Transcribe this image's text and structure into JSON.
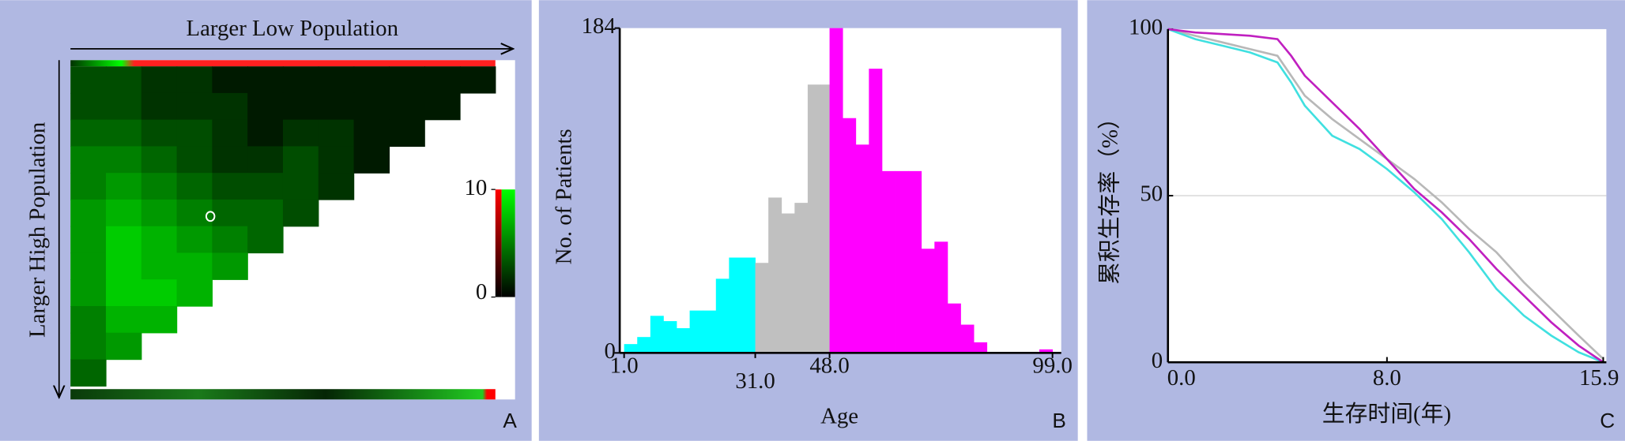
{
  "chart_data": [
    {
      "type": "heatmap",
      "title": "Larger Low Population",
      "ylabel": "Larger High Population",
      "panel_label": "A",
      "clim": [
        0,
        10
      ],
      "colorbar_ticks": [
        0,
        10
      ],
      "matrix": [
        [
          3,
          3,
          2,
          2,
          1,
          1,
          1,
          1,
          1,
          1,
          1,
          1
        ],
        [
          3,
          3,
          2,
          2,
          2,
          1,
          1,
          1,
          1,
          1,
          1
        ],
        [
          4,
          4,
          3,
          3,
          2,
          1,
          2,
          2,
          1,
          1
        ],
        [
          5,
          5,
          4,
          3,
          2,
          2,
          3,
          2,
          1
        ],
        [
          5,
          6,
          5,
          4,
          3,
          3,
          3,
          2
        ],
        [
          6,
          7,
          6,
          5,
          4,
          4,
          3
        ],
        [
          6,
          8,
          7,
          6,
          5,
          4
        ],
        [
          6,
          8,
          7,
          7,
          6
        ],
        [
          6,
          8,
          8,
          7
        ],
        [
          5,
          7,
          7
        ],
        [
          5,
          6
        ],
        [
          4
        ]
      ]
    },
    {
      "type": "histogram",
      "xlabel": "Age",
      "ylabel": "No. of Patients",
      "panel_label": "B",
      "xlim": [
        0,
        101
      ],
      "ylim": [
        0,
        184
      ],
      "xticks": [
        {
          "value": 1,
          "label": "1.0"
        },
        {
          "value": 31,
          "label": "31.0"
        },
        {
          "value": 48,
          "label": "48.0"
        },
        {
          "value": 99,
          "label": "99.0"
        }
      ],
      "yticks": [
        0,
        184
      ],
      "series": [
        {
          "color": "#00ffff",
          "bins": [
            1,
            4,
            7,
            10,
            13,
            16,
            19,
            22,
            25,
            28,
            31
          ],
          "counts": [
            5,
            9,
            21,
            18,
            14,
            24,
            24,
            42,
            54,
            54
          ]
        },
        {
          "color": "#c0c0c0",
          "bins": [
            31,
            34,
            37,
            40,
            43,
            46,
            48
          ],
          "counts": [
            51,
            88,
            79,
            85,
            152,
            152
          ]
        },
        {
          "color": "#ff00ff",
          "bins": [
            48,
            51,
            54,
            57,
            60,
            63,
            66,
            69,
            72,
            75,
            78,
            81,
            84,
            87,
            90,
            93,
            96,
            99
          ],
          "counts": [
            184,
            133,
            118,
            161,
            103,
            103,
            103,
            59,
            63,
            28,
            16,
            6,
            0,
            0,
            0,
            0,
            2
          ]
        }
      ]
    },
    {
      "type": "line",
      "xlabel": "生存时间(年)",
      "ylabel": "累积生存率（%）",
      "panel_label": "C",
      "xlim": [
        0,
        15.9
      ],
      "ylim": [
        0,
        100
      ],
      "xticks": [
        {
          "value": 0,
          "label": "0.0"
        },
        {
          "value": 8,
          "label": "8.0"
        },
        {
          "value": 15.9,
          "label": "15.9"
        }
      ],
      "yticks": [
        0,
        50,
        100
      ],
      "grid": true,
      "series": [
        {
          "color": "#b8b8b8",
          "x": [
            0,
            1,
            2,
            3,
            4,
            4.5,
            5,
            6,
            7,
            8,
            9,
            10,
            11,
            12,
            13,
            14,
            15,
            15.9
          ],
          "values": [
            100,
            98,
            96,
            94,
            92,
            86,
            80,
            73,
            67,
            61,
            55,
            48,
            40,
            33,
            24,
            16,
            8,
            1
          ]
        },
        {
          "color": "#40e0e0",
          "x": [
            0,
            1,
            2,
            3,
            4,
            4.5,
            5,
            6,
            7,
            8,
            9,
            10,
            11,
            12,
            13,
            14,
            15,
            15.9
          ],
          "values": [
            100,
            97,
            95,
            93,
            90,
            84,
            77,
            68,
            64,
            58,
            51,
            43,
            33,
            22,
            14,
            8,
            3,
            0
          ]
        },
        {
          "color": "#c020c0",
          "x": [
            0,
            1,
            3,
            4,
            4.5,
            5,
            6,
            7,
            8,
            9,
            10,
            11,
            12,
            13,
            14,
            15,
            15.9
          ],
          "values": [
            100,
            99,
            98,
            97,
            92,
            86,
            78,
            70,
            61,
            52,
            45,
            37,
            28,
            20,
            12,
            5,
            0
          ]
        }
      ]
    }
  ]
}
